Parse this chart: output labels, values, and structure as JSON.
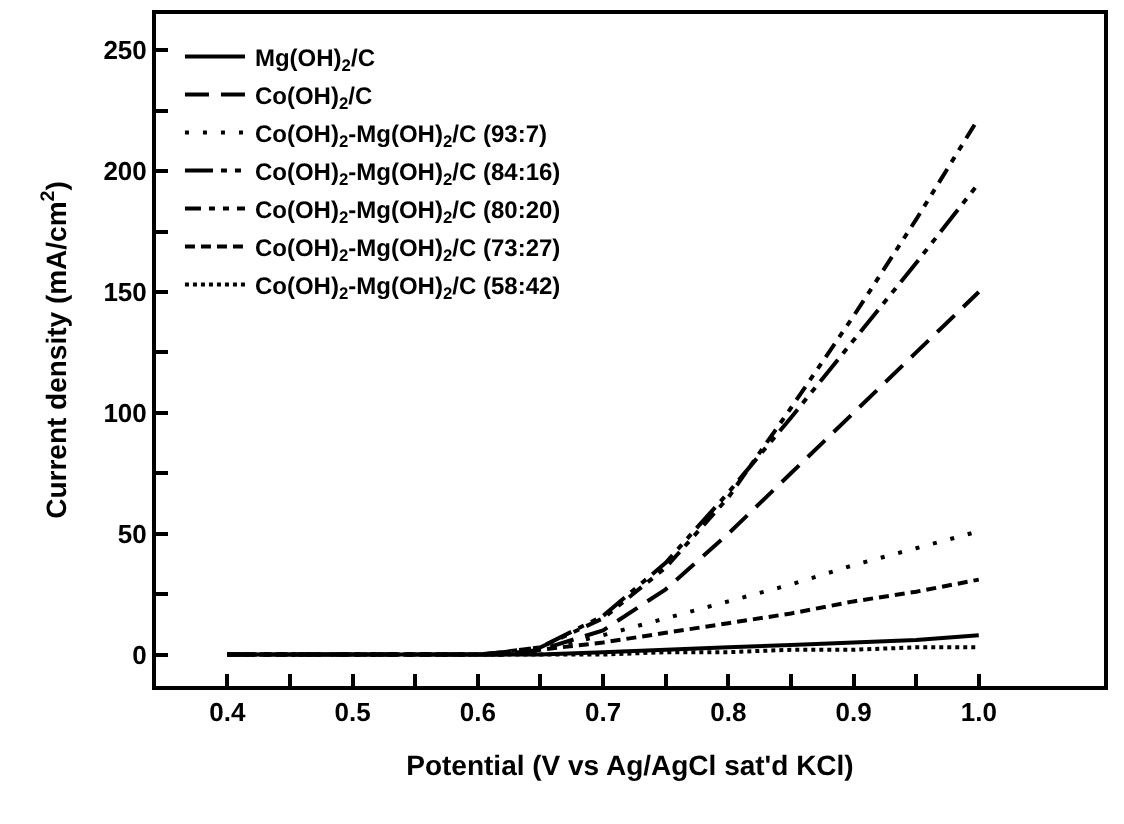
{
  "chart_data": {
    "type": "line",
    "xlabel": "Potential (V vs Ag/AgCl sat'd KCl)",
    "ylabel": "Current density (mA/cm$^{2}$)",
    "x": [
      0.4,
      0.5,
      0.6,
      0.62,
      0.65,
      0.7,
      0.75,
      0.8,
      0.85,
      0.9,
      0.95,
      1.0
    ],
    "series": [
      {
        "name": "Mg(OH)$_{2}$/C",
        "color": "#000000",
        "line_style": "solid",
        "values": [
          0,
          0,
          0,
          0,
          0,
          1,
          2,
          3,
          4,
          5,
          6,
          8
        ]
      },
      {
        "name": "Co(OH)$_{2}$/C",
        "color": "#000000",
        "line_style": "dashed",
        "values": [
          0,
          0,
          0,
          0,
          2,
          10,
          27,
          50,
          75,
          100,
          125,
          150
        ]
      },
      {
        "name": "Co(OH)$_{2}$-Mg(OH)$_{2}$/C (93:7)",
        "color": "#000000",
        "line_style": "dotted",
        "values": [
          0,
          0,
          0,
          0,
          2,
          8,
          15,
          22,
          29,
          37,
          44,
          51
        ]
      },
      {
        "name": "Co(OH)$_{2}$-Mg(OH)$_{2}$/C (84:16)",
        "color": "#000000",
        "line_style": "dashed",
        "values": [
          0,
          0,
          0,
          1,
          3,
          16,
          38,
          67,
          98,
          130,
          162,
          195
        ]
      },
      {
        "name": "Co(OH)$_{2}$-Mg(OH)$_{2}$/C (80:20)",
        "color": "#000000",
        "line_style": "dashed",
        "values": [
          0,
          0,
          0,
          1,
          3,
          15,
          36,
          65,
          102,
          140,
          180,
          222
        ]
      },
      {
        "name": "Co(OH)$_{2}$-Mg(OH)$_{2}$/C (73:27)",
        "color": "#000000",
        "line_style": "dashed",
        "values": [
          0,
          0,
          0,
          0,
          2,
          5,
          9,
          13,
          17,
          22,
          26,
          31
        ]
      },
      {
        "name": "Co(OH)$_{2}$-Mg(OH)$_{2}$/C (58:42)",
        "color": "#000000",
        "line_style": "dotted",
        "values": [
          0,
          0,
          0,
          0,
          0,
          0,
          1,
          1,
          2,
          2,
          3,
          3
        ]
      }
    ],
    "xlim": [
      0.343,
      1.1
    ],
    "ylim": [
      -13,
      265
    ],
    "xticks": [
      {
        "value": 0.4,
        "label": "0.4"
      },
      {
        "value": 0.45,
        "label": null
      },
      {
        "value": 0.5,
        "label": "0.5"
      },
      {
        "value": 0.55,
        "label": null
      },
      {
        "value": 0.6,
        "label": "0.6"
      },
      {
        "value": 0.65,
        "label": null
      },
      {
        "value": 0.7,
        "label": "0.7"
      },
      {
        "value": 0.75,
        "label": null
      },
      {
        "value": 0.8,
        "label": "0.8"
      },
      {
        "value": 0.85,
        "label": null
      },
      {
        "value": 0.9,
        "label": "0.9"
      },
      {
        "value": 0.95,
        "label": null
      },
      {
        "value": 1.0,
        "label": "1.0"
      }
    ],
    "yticks": [
      0,
      {
        "value": 25,
        "label": null
      },
      50,
      {
        "value": 75,
        "label": null
      },
      100,
      {
        "value": 125,
        "label": null
      },
      150,
      {
        "value": 175,
        "label": null
      },
      200,
      {
        "value": 225,
        "label": null
      },
      250
    ],
    "legend": "top left",
    "marker": "none"
  }
}
